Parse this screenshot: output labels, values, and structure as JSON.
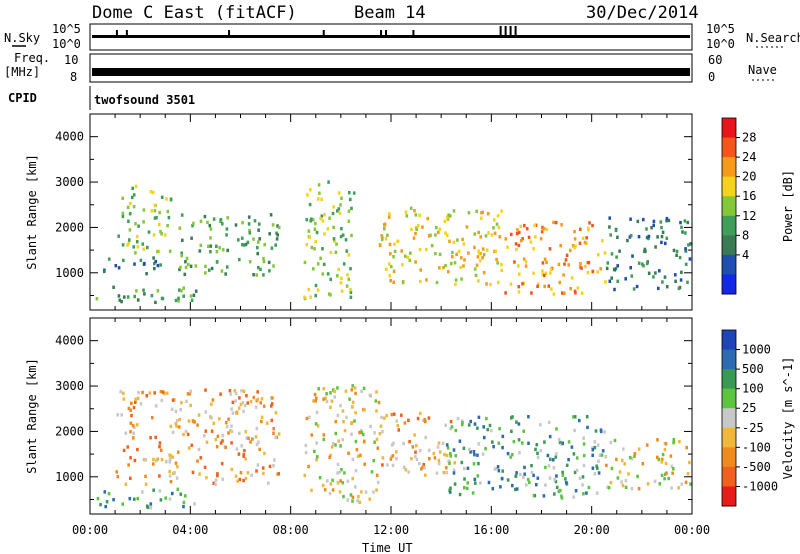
{
  "header": {
    "title": "Dome C East (fitACF)",
    "beam": "Beam 14",
    "date": "30/Dec/2014"
  },
  "side_labels": {
    "nsky": "N.Sky",
    "freq": "Freq.",
    "mhz": "[MHz]",
    "cpid": "CPID",
    "nsearch": "N.Search",
    "nave": "Nave"
  },
  "small_panels": {
    "nsky_ticks": [
      "10^5",
      "10^0"
    ],
    "nsearch_ticks": [
      "10^5",
      "10^0"
    ],
    "freq_ticks": [
      "10",
      "8"
    ],
    "nave_ticks": [
      "60",
      "0"
    ],
    "cpid_text": "twofsound 3501"
  },
  "chart_data": [
    {
      "type": "heatmap",
      "name_hint": "power",
      "ylabel": "Slant Range [km]",
      "ylim": [
        180,
        4500
      ],
      "yticks": [
        1000,
        2000,
        3000,
        4000
      ],
      "xticks": [
        "00:00",
        "04:00",
        "08:00",
        "12:00",
        "16:00",
        "20:00",
        "00:00"
      ],
      "xlim_hours": [
        0,
        24
      ],
      "colorbar": {
        "label": "Power [dB]",
        "ticks": [
          "28",
          "24",
          "20",
          "16",
          "12",
          "8",
          "4"
        ],
        "colors": [
          "#e8141a",
          "#f2561a",
          "#f79a1c",
          "#f5d31a",
          "#84c83a",
          "#3f9e5a",
          "#3a7a55",
          "#1e4fb0",
          "#1228e6"
        ]
      },
      "echo_regions": [
        {
          "t0": 0.2,
          "t1": 4.2,
          "r0": 280,
          "r1": 700,
          "level": "mixed"
        },
        {
          "t0": 0.5,
          "t1": 3.0,
          "r0": 900,
          "r1": 1300,
          "level": "low"
        },
        {
          "t0": 1.0,
          "t1": 3.2,
          "r0": 1400,
          "r1": 2900,
          "level": "mid"
        },
        {
          "t0": 3.5,
          "t1": 7.5,
          "r0": 900,
          "r1": 2300,
          "level": "low-mid"
        },
        {
          "t0": 8.5,
          "t1": 10.5,
          "r0": 400,
          "r1": 3000,
          "level": "mid"
        },
        {
          "t0": 11.5,
          "t1": 16.5,
          "r0": 700,
          "r1": 2400,
          "level": "mid-high"
        },
        {
          "t0": 16.5,
          "t1": 20.5,
          "r0": 500,
          "r1": 2100,
          "level": "high"
        },
        {
          "t0": 20.5,
          "t1": 23.9,
          "r0": 600,
          "r1": 2200,
          "level": "low"
        }
      ]
    },
    {
      "type": "heatmap",
      "name_hint": "velocity",
      "ylabel": "Slant Range [km]",
      "ylim": [
        180,
        4500
      ],
      "yticks": [
        1000,
        2000,
        3000,
        4000
      ],
      "xticks": [
        "00:00",
        "04:00",
        "08:00",
        "12:00",
        "16:00",
        "20:00",
        "00:00"
      ],
      "xlabel": "Time UT",
      "xlim_hours": [
        0,
        24
      ],
      "colorbar": {
        "label": "Velocity [m s^-1]",
        "ticks": [
          "1000",
          "500",
          "100",
          "25",
          "-25",
          "-100",
          "-500",
          "-1000"
        ],
        "colors": [
          "#1f44b8",
          "#2c6bb0",
          "#3a9a55",
          "#5cc440",
          "#c8c8c8",
          "#f0b83a",
          "#f08a1e",
          "#f0601e",
          "#e81a1a"
        ]
      },
      "echo_regions": [
        {
          "t0": 0.2,
          "t1": 4.2,
          "r0": 280,
          "r1": 700,
          "level": "positive"
        },
        {
          "t0": 1.0,
          "t1": 7.5,
          "r0": 800,
          "r1": 2900,
          "level": "negative"
        },
        {
          "t0": 8.5,
          "t1": 11.5,
          "r0": 400,
          "r1": 3000,
          "level": "mixed"
        },
        {
          "t0": 11.5,
          "t1": 14.5,
          "r0": 1000,
          "r1": 2400,
          "level": "negative"
        },
        {
          "t0": 14.0,
          "t1": 20.5,
          "r0": 500,
          "r1": 2300,
          "level": "positive"
        },
        {
          "t0": 20.5,
          "t1": 23.9,
          "r0": 700,
          "r1": 1800,
          "level": "mixed"
        }
      ]
    }
  ]
}
